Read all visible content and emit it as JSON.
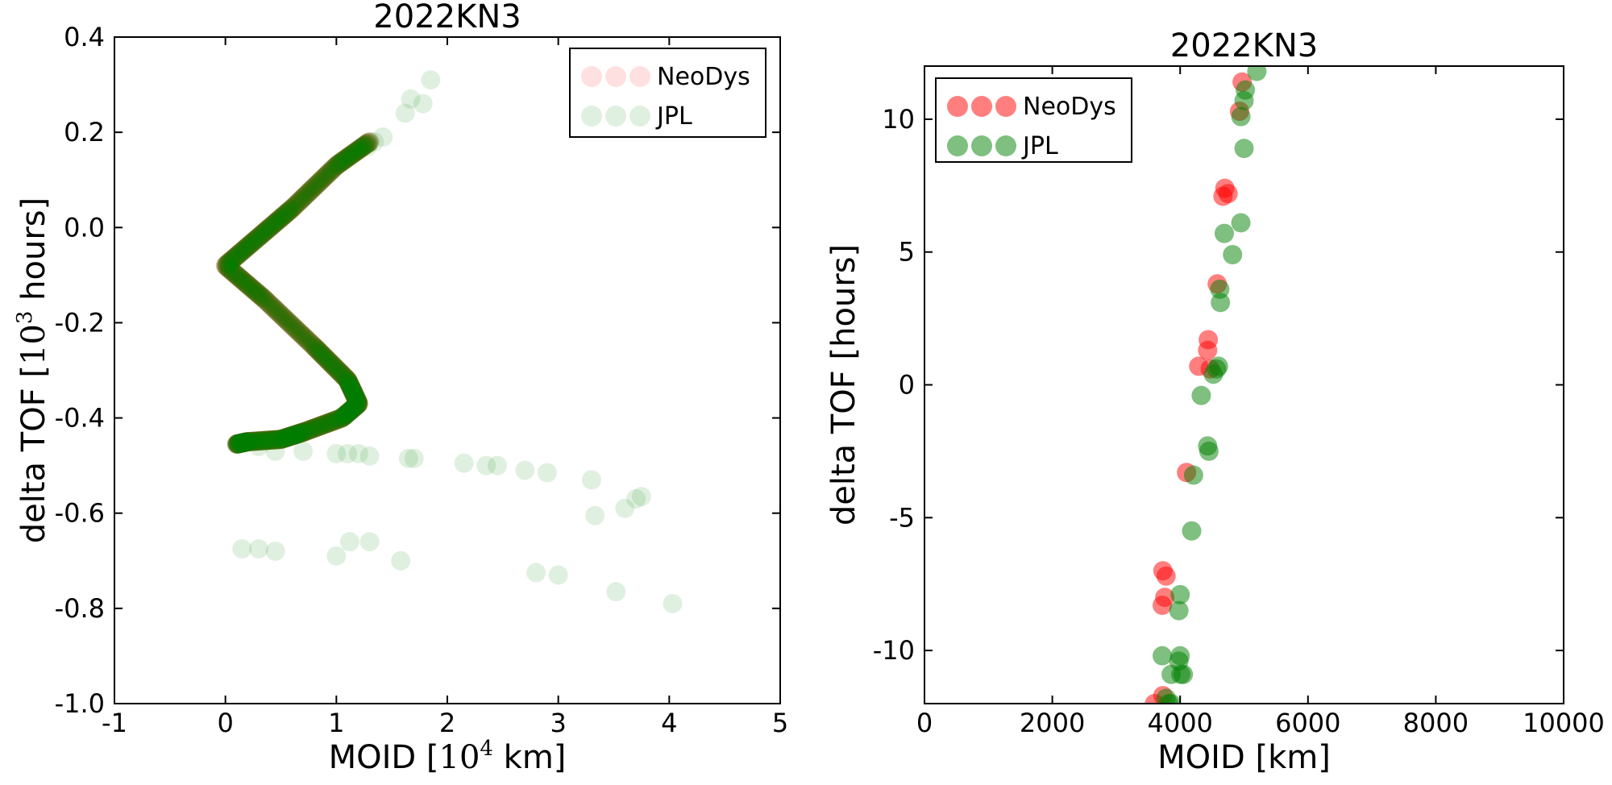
{
  "chart_data": [
    {
      "type": "scatter",
      "title": "2022KN3",
      "xlabel": "MOID [10^4 km]",
      "ylabel": "delta TOF [10^3 hours]",
      "xlabel_parts": {
        "pre": "MOID [",
        "base": "10",
        "exp": "4",
        "post": "  km]"
      },
      "ylabel_parts": {
        "pre": "delta TOF [",
        "base": "10",
        "exp": "3",
        "post": "  hours]"
      },
      "xlim": [
        -1,
        5
      ],
      "ylim": [
        -1.0,
        0.4
      ],
      "xticks": [
        "-1",
        "0",
        "1",
        "2",
        "3",
        "4",
        "5"
      ],
      "yticks": [
        "-1.0",
        "-0.8",
        "-0.6",
        "-0.4",
        "-0.2",
        "0.0",
        "0.2",
        "0.4"
      ],
      "legend_position": "top-right",
      "series": [
        {
          "name": "NeoDys",
          "color": "#ff0000",
          "opacity": 0.12,
          "curve": [
            [
              1.3,
              0.18
            ],
            [
              1.0,
              0.13
            ],
            [
              0.6,
              0.04
            ],
            [
              0.3,
              -0.02
            ],
            [
              0.0,
              -0.08
            ],
            [
              0.35,
              -0.15
            ],
            [
              0.8,
              -0.25
            ],
            [
              1.1,
              -0.32
            ],
            [
              1.2,
              -0.37
            ],
            [
              1.05,
              -0.4
            ],
            [
              0.7,
              -0.43
            ],
            [
              0.5,
              -0.445
            ],
            [
              0.2,
              -0.45
            ],
            [
              0.1,
              -0.455
            ]
          ],
          "x": [],
          "y": []
        },
        {
          "name": "JPL",
          "color": "#008000",
          "opacity": 0.12,
          "curve": [
            [
              1.3,
              0.18
            ],
            [
              1.0,
              0.13
            ],
            [
              0.6,
              0.04
            ],
            [
              0.3,
              -0.02
            ],
            [
              0.0,
              -0.08
            ],
            [
              0.35,
              -0.15
            ],
            [
              0.8,
              -0.25
            ],
            [
              1.1,
              -0.32
            ],
            [
              1.2,
              -0.37
            ],
            [
              1.05,
              -0.4
            ],
            [
              0.7,
              -0.43
            ],
            [
              0.5,
              -0.445
            ],
            [
              0.2,
              -0.45
            ],
            [
              0.1,
              -0.455
            ]
          ],
          "x": [
            1.78,
            1.62,
            1.67,
            1.85,
            1.42,
            1.28,
            1.34,
            0.1,
            0.2,
            0.3,
            0.45,
            0.7,
            1.0,
            1.1,
            1.2,
            1.3,
            1.65,
            1.7,
            2.15,
            2.35,
            2.45,
            2.7,
            2.9,
            3.3,
            3.33,
            3.6,
            3.7,
            3.75,
            0.15,
            0.3,
            0.45,
            1.0,
            1.12,
            1.3,
            1.58,
            2.8,
            3.0,
            3.52,
            4.03
          ],
          "y": [
            0.26,
            0.24,
            0.27,
            0.31,
            0.19,
            0.17,
            0.18,
            -0.455,
            -0.45,
            -0.46,
            -0.47,
            -0.47,
            -0.475,
            -0.475,
            -0.475,
            -0.48,
            -0.485,
            -0.485,
            -0.495,
            -0.5,
            -0.5,
            -0.51,
            -0.515,
            -0.53,
            -0.605,
            -0.59,
            -0.57,
            -0.565,
            -0.675,
            -0.675,
            -0.68,
            -0.69,
            -0.66,
            -0.66,
            -0.7,
            -0.725,
            -0.73,
            -0.765,
            -0.79
          ]
        }
      ]
    },
    {
      "type": "scatter",
      "title": "2022KN3",
      "xlabel": "MOID [km]",
      "ylabel": "delta TOF [hours]",
      "xlim": [
        0,
        10000
      ],
      "ylim": [
        -12,
        12
      ],
      "xticks": [
        "0",
        "2000",
        "4000",
        "6000",
        "8000",
        "10000"
      ],
      "yticks": [
        "-10",
        "-5",
        "0",
        "5",
        "10"
      ],
      "legend_position": "top-left",
      "series": [
        {
          "name": "NeoDys",
          "color": "#ff0000",
          "opacity": 0.5,
          "x": [
            4970,
            4930,
            4700,
            4750,
            4670,
            4580,
            4440,
            4430,
            4290,
            4470,
            4100,
            3730,
            3780,
            3760,
            3720,
            3600,
            3730
          ],
          "y": [
            11.4,
            10.3,
            7.4,
            7.2,
            7.1,
            3.8,
            1.7,
            1.3,
            0.7,
            0.6,
            -3.3,
            -7.0,
            -7.2,
            -8.0,
            -8.3,
            -12.0,
            -11.7
          ]
        },
        {
          "name": "JPL",
          "color": "#008000",
          "opacity": 0.5,
          "x": [
            5200,
            5020,
            5000,
            4950,
            5000,
            4950,
            4690,
            4820,
            4620,
            4630,
            4520,
            4570,
            4600,
            4330,
            4430,
            4450,
            4210,
            4180,
            4000,
            3980,
            4000,
            3720,
            3980,
            4010,
            3860,
            4050,
            3780,
            3820,
            3860
          ],
          "y": [
            11.8,
            11.1,
            10.7,
            10.1,
            8.9,
            6.1,
            5.7,
            4.9,
            3.6,
            3.1,
            0.4,
            0.6,
            0.7,
            -0.4,
            -2.3,
            -2.5,
            -3.4,
            -5.5,
            -7.9,
            -8.5,
            -10.2,
            -10.2,
            -10.4,
            -10.9,
            -10.9,
            -10.9,
            -11.8,
            -12.0,
            -12.0
          ]
        }
      ]
    }
  ]
}
